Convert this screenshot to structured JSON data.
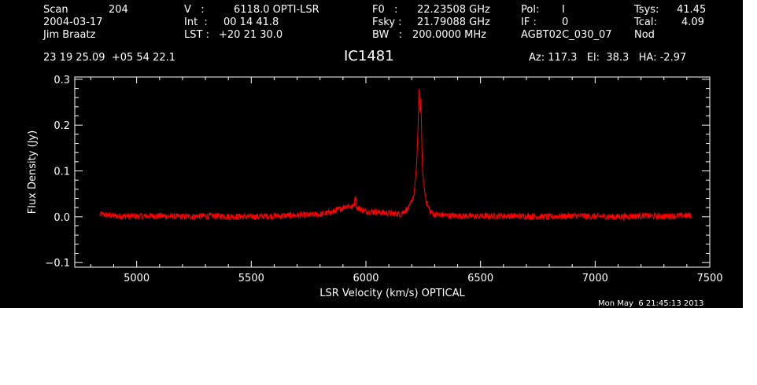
{
  "header": {
    "scan_label": "Scan",
    "scan_value": "204",
    "date": "2004-03-17",
    "observer": "Jim Braatz",
    "v_label": "V   :",
    "v_value": "6118.0 OPTI-LSR",
    "int_label": "Int  :",
    "int_value": "00 14 41.8",
    "lst_label": "LST :",
    "lst_value": "+20 21 30.0",
    "f0_label": "F0   :",
    "f0_value": "22.23508 GHz",
    "fsky_label": "Fsky :",
    "fsky_value": "21.79088 GHz",
    "bw_label": "BW   :",
    "bw_value": "200.0000 MHz",
    "pol_label": "Pol:",
    "pol_value": "I",
    "if_label": "IF :",
    "if_value": "0",
    "project": "AGBT02C_030_07",
    "tsys_label": "Tsys:",
    "tsys_value": "41.45",
    "tcal_label": "Tcal:",
    "tcal_value": "4.09",
    "proc": "Nod",
    "coords": "23 19 25.09  +05 54 22.1",
    "source": "IC1481",
    "az_el_ha": "Az: 117.3   El:  38.3   HA: -2.97"
  },
  "timestamp": "Mon May  6 21:45:13 2013",
  "chart_data": {
    "type": "line",
    "xlabel": "LSR Velocity (km/s) OPTICAL",
    "ylabel": "Flux Density (Jy)",
    "xlim": [
      4730,
      7500
    ],
    "ylim": [
      -0.11,
      0.305
    ],
    "xticks": [
      5000,
      5500,
      6000,
      6500,
      7000,
      7500
    ],
    "xtick_labels": [
      "5000",
      "5500",
      "6000",
      "6500",
      "7000",
      "7500"
    ],
    "yticks": [
      -0.1,
      0.0,
      0.1,
      0.2,
      0.3
    ],
    "ytick_labels": [
      "−0.1",
      "0.0",
      "0.1",
      "0.2",
      "0.3"
    ],
    "grid": false,
    "line_color": "#ff0000",
    "axis_color": "#ffffff",
    "series": [
      {
        "x": [
          4840,
          4900,
          5000,
          5100,
          5200,
          5300,
          5400,
          5500,
          5600,
          5700,
          5800,
          5850,
          5900,
          5920,
          5940,
          5950,
          5955,
          5960,
          5970,
          6000,
          6050,
          6100,
          6150,
          6190,
          6210,
          6220,
          6228,
          6232,
          6236,
          6240,
          6244,
          6248,
          6255,
          6265,
          6280,
          6300,
          6350,
          6400,
          6500,
          6600,
          6700,
          6800,
          6900,
          7000,
          7100,
          7200,
          7300,
          7420
        ],
        "y": [
          0.005,
          0.002,
          0.001,
          0.002,
          0.0,
          0.002,
          0.001,
          0.0,
          0.002,
          0.003,
          0.005,
          0.01,
          0.02,
          0.025,
          0.02,
          0.03,
          0.05,
          0.02,
          0.018,
          0.012,
          0.01,
          0.008,
          0.006,
          0.02,
          0.05,
          0.1,
          0.2,
          0.28,
          0.22,
          0.26,
          0.15,
          0.09,
          0.06,
          0.03,
          0.012,
          0.005,
          0.003,
          0.002,
          0.001,
          0.002,
          0.001,
          0.0,
          0.002,
          0.001,
          0.0,
          0.002,
          0.001,
          0.003
        ]
      }
    ]
  }
}
